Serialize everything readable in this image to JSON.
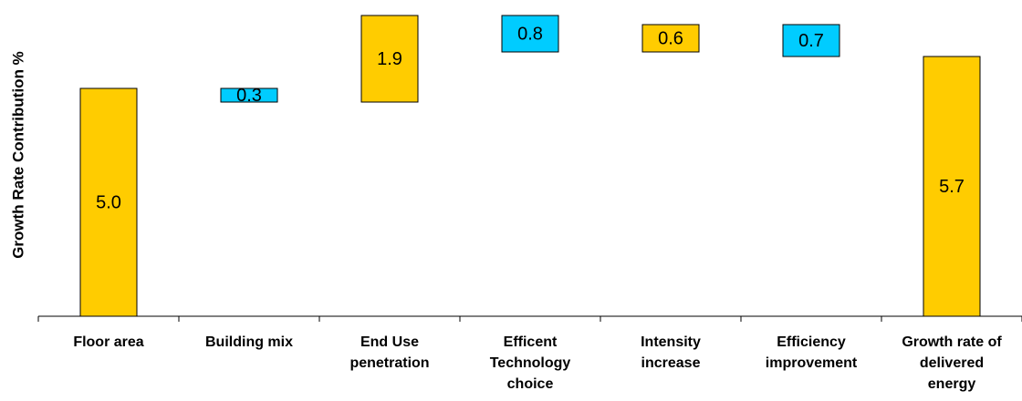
{
  "chart_data": {
    "type": "waterfall",
    "y_label": "Growth Rate Contribution %",
    "categories": [
      "Floor area",
      "Building mix",
      "End Use penetration",
      "Efficent Technology choice",
      "Intensity increase",
      "Efficiency improvement",
      "Growth rate of delivered energy"
    ],
    "values": [
      5.0,
      -0.3,
      1.9,
      -0.8,
      0.6,
      -0.7,
      5.7
    ],
    "value_labels": [
      "5.0",
      "0.3",
      "1.9",
      "0.8",
      "0.6",
      "0.7",
      "5.7"
    ],
    "measure": [
      "absolute",
      "relative",
      "relative",
      "relative",
      "relative",
      "relative",
      "total"
    ],
    "colors": [
      "#ffcc00",
      "#00ccff",
      "#ffcc00",
      "#00ccff",
      "#ffcc00",
      "#00ccff",
      "#ffcc00"
    ],
    "ylim": [
      0,
      6.8
    ]
  }
}
